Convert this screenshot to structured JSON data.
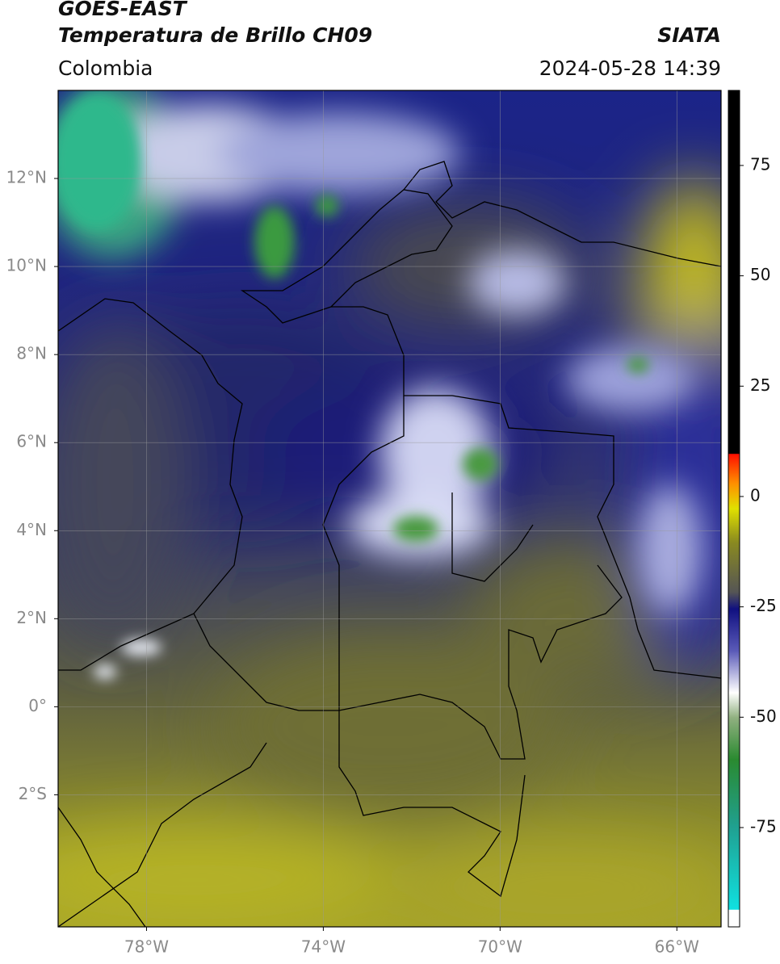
{
  "header": {
    "title_lines": [
      "GOES-EAST",
      "Temperatura de Brillo CH09"
    ],
    "region": "Colombia",
    "source": "SIATA",
    "timestamp": "2024-05-28 14:39"
  },
  "map": {
    "lonlim": [
      -80,
      -65
    ],
    "latlim": [
      -5,
      14
    ],
    "grid": true,
    "lat_ticks": [
      {
        "value": 12,
        "label": "12°N"
      },
      {
        "value": 10,
        "label": "10°N"
      },
      {
        "value": 8,
        "label": "8°N"
      },
      {
        "value": 6,
        "label": "6°N"
      },
      {
        "value": 4,
        "label": "4°N"
      },
      {
        "value": 2,
        "label": "2°N"
      },
      {
        "value": 0,
        "label": "0°"
      },
      {
        "value": -2,
        "label": "2°S"
      }
    ],
    "lon_ticks": [
      {
        "value": -78,
        "label": "78°W"
      },
      {
        "value": -74,
        "label": "74°W"
      },
      {
        "value": -70,
        "label": "70°W"
      },
      {
        "value": -66,
        "label": "66°W"
      }
    ]
  },
  "colorbar": {
    "lim": [
      -97.5,
      92
    ],
    "ticks": [
      75,
      50,
      25,
      0,
      -25,
      -50,
      -75
    ]
  }
}
